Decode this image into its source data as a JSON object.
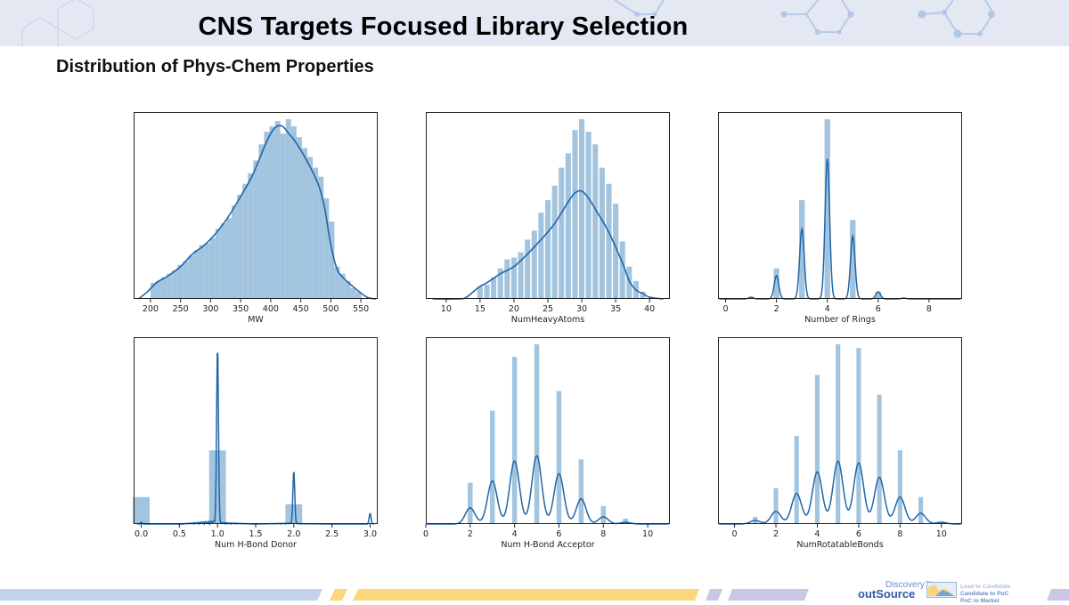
{
  "header": {
    "title": "CNS Targets Focused Library Selection",
    "subtitle": "Distribution of Phys-Chem Properties"
  },
  "footer": {
    "logo_top": "Discovery™",
    "logo_bottom": "outSource",
    "tagline_1": "Lead to Candidate",
    "tagline_2": "Candidate to PoC",
    "tagline_3": "PoC to Market",
    "colors": {
      "blue_band": "#c5d3ea",
      "yellow_band": "#fcd77c",
      "lavender_band": "#c9c6e6"
    }
  },
  "colors": {
    "bar": "#a2c4de",
    "kde": "#2066a8",
    "frame": "#222222"
  },
  "chart_data": [
    {
      "type": "bar",
      "title": "",
      "xlabel": "MW",
      "ylabel": "",
      "xlim": [
        172,
        578
      ],
      "xticks": [
        200,
        250,
        300,
        350,
        400,
        450,
        500,
        550
      ],
      "xtick_labels": [
        "200",
        "250",
        "300",
        "350",
        "400",
        "450",
        "500",
        "550"
      ],
      "grid": false,
      "bin_width": 9,
      "bars": {
        "x": [
          200,
          209,
          218,
          227,
          236,
          245,
          254,
          263,
          272,
          281,
          290,
          299,
          308,
          317,
          326,
          335,
          344,
          353,
          362,
          371,
          380,
          389,
          398,
          407,
          416,
          425,
          434,
          443,
          452,
          461,
          470,
          479,
          488,
          497,
          506,
          515,
          524,
          533,
          542
        ],
        "y": [
          0.09,
          0.1,
          0.12,
          0.14,
          0.16,
          0.19,
          0.21,
          0.24,
          0.27,
          0.3,
          0.31,
          0.34,
          0.39,
          0.42,
          0.45,
          0.52,
          0.58,
          0.64,
          0.7,
          0.77,
          0.86,
          0.93,
          0.96,
          0.99,
          0.92,
          1.0,
          0.96,
          0.9,
          0.84,
          0.79,
          0.73,
          0.68,
          0.56,
          0.43,
          0.18,
          0.14,
          0.1,
          0.06,
          0.04
        ]
      },
      "kde": {
        "x": [
          180,
          195,
          210,
          230,
          250,
          270,
          290,
          310,
          330,
          350,
          370,
          390,
          400,
          410,
          420,
          430,
          440,
          460,
          480,
          490,
          500,
          510,
          520,
          540,
          560,
          575
        ],
        "y": [
          0.0,
          0.04,
          0.09,
          0.13,
          0.18,
          0.25,
          0.3,
          0.37,
          0.46,
          0.57,
          0.69,
          0.85,
          0.92,
          0.96,
          0.96,
          0.92,
          0.88,
          0.77,
          0.63,
          0.5,
          0.3,
          0.17,
          0.12,
          0.06,
          0.01,
          0.0
        ]
      }
    },
    {
      "type": "bar",
      "xlabel": "NumHeavyAtoms",
      "xlim": [
        7,
        43
      ],
      "xticks": [
        10,
        15,
        20,
        25,
        30,
        35,
        40
      ],
      "xtick_labels": [
        "10",
        "15",
        "20",
        "25",
        "30",
        "35",
        "40"
      ],
      "grid": false,
      "bars": {
        "x": [
          15,
          16,
          17,
          18,
          19,
          20,
          21,
          22,
          23,
          24,
          25,
          26,
          27,
          28,
          29,
          30,
          31,
          32,
          33,
          34,
          35,
          36,
          37,
          38,
          39
        ],
        "y": [
          0.07,
          0.08,
          0.12,
          0.17,
          0.22,
          0.23,
          0.26,
          0.33,
          0.38,
          0.48,
          0.55,
          0.63,
          0.73,
          0.81,
          0.94,
          1.0,
          0.93,
          0.86,
          0.73,
          0.64,
          0.53,
          0.32,
          0.18,
          0.1,
          0.04
        ]
      },
      "kde": {
        "x": [
          8,
          12,
          13,
          14,
          15,
          16,
          18,
          20,
          22,
          24,
          26,
          28,
          29,
          30,
          31,
          32,
          34,
          36,
          37,
          38,
          39,
          40,
          42
        ],
        "y": [
          0.0,
          0.0,
          0.01,
          0.04,
          0.07,
          0.09,
          0.14,
          0.18,
          0.25,
          0.33,
          0.42,
          0.54,
          0.59,
          0.6,
          0.56,
          0.5,
          0.37,
          0.2,
          0.1,
          0.05,
          0.03,
          0.01,
          0.0
        ]
      }
    },
    {
      "type": "bar",
      "xlabel": "Number of Rings",
      "xlim": [
        -0.3,
        9.3
      ],
      "xticks": [
        0,
        2,
        4,
        6,
        8
      ],
      "xtick_labels": [
        "0",
        "2",
        "4",
        "6",
        "8"
      ],
      "grid": false,
      "bars": {
        "x": [
          1,
          2,
          3,
          4,
          5,
          6,
          7
        ],
        "y": [
          0.0,
          0.17,
          0.55,
          1.0,
          0.44,
          0.04,
          0.0
        ]
      },
      "kde_peaks": {
        "x": [
          1,
          2,
          3,
          4,
          5,
          6,
          7
        ],
        "y": [
          0.01,
          0.13,
          0.39,
          0.78,
          0.35,
          0.04,
          0.005
        ]
      }
    },
    {
      "type": "bar",
      "xlabel": "Num H-Bond Donor",
      "xlim": [
        -0.1,
        3.1
      ],
      "xticks": [
        0.0,
        0.5,
        1.0,
        1.5,
        2.0,
        2.5,
        3.0
      ],
      "xtick_labels": [
        "0.0",
        "0.5",
        "1.0",
        "1.5",
        "2.0",
        "2.5",
        "3.0"
      ],
      "grid": false,
      "bars": {
        "x": [
          0.0,
          1.0,
          2.0,
          3.0
        ],
        "y": [
          0.15,
          0.41,
          0.11,
          0.0
        ]
      },
      "kde_peaks": {
        "x": [
          0.0,
          1.0,
          2.0,
          3.0
        ],
        "y": [
          0.01,
          1.0,
          0.3,
          0.06
        ]
      }
    },
    {
      "type": "bar",
      "xlabel": "Num H-Bond Acceptor",
      "xlim": [
        0,
        11
      ],
      "xticks": [
        0,
        2,
        4,
        6,
        8,
        10
      ],
      "xtick_labels": [
        "0",
        "2",
        "4",
        "6",
        "8",
        "10"
      ],
      "grid": false,
      "bars": {
        "x": [
          2,
          3,
          4,
          5,
          6,
          7,
          8,
          9
        ],
        "y": [
          0.23,
          0.63,
          0.93,
          1.0,
          0.74,
          0.36,
          0.1,
          0.03
        ]
      },
      "kde_peaks": {
        "x": [
          1,
          2,
          3,
          4,
          5,
          6,
          7,
          8,
          9,
          10
        ],
        "y": [
          0.0,
          0.09,
          0.24,
          0.35,
          0.38,
          0.28,
          0.14,
          0.04,
          0.01,
          0.0
        ]
      }
    },
    {
      "type": "bar",
      "xlabel": "NumRotatableBonds",
      "xlim": [
        -0.8,
        11
      ],
      "xticks": [
        0,
        2,
        4,
        6,
        8,
        10
      ],
      "xtick_labels": [
        "0",
        "2",
        "4",
        "6",
        "8",
        "10"
      ],
      "grid": false,
      "bars": {
        "x": [
          1,
          2,
          3,
          4,
          5,
          6,
          7,
          8,
          9,
          10
        ],
        "y": [
          0.04,
          0.2,
          0.49,
          0.83,
          1.0,
          0.98,
          0.72,
          0.41,
          0.15,
          0.01
        ]
      },
      "kde_peaks": {
        "x": [
          0,
          1,
          2,
          3,
          4,
          5,
          6,
          7,
          8,
          9,
          10
        ],
        "y": [
          0.0,
          0.02,
          0.07,
          0.17,
          0.29,
          0.35,
          0.34,
          0.26,
          0.15,
          0.06,
          0.01
        ]
      }
    }
  ]
}
